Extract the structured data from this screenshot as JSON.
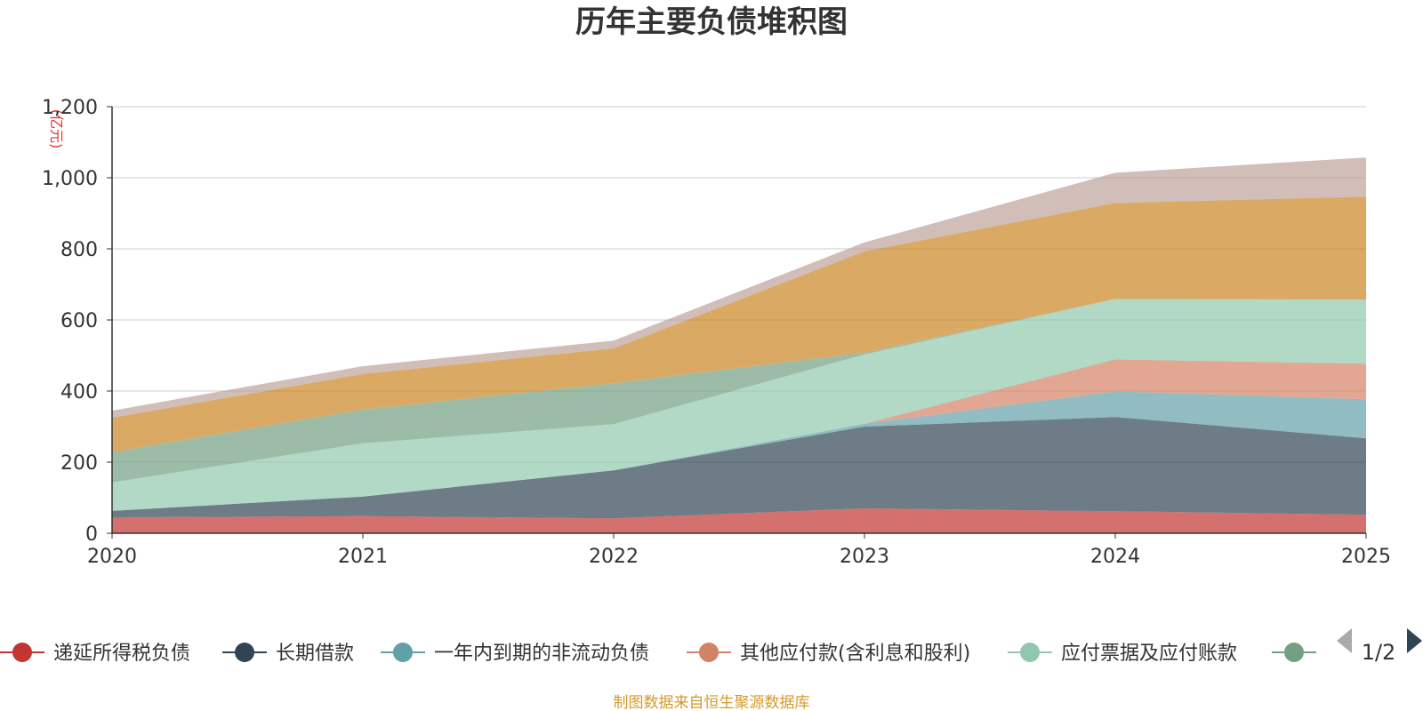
{
  "chart_data": {
    "type": "area",
    "stacked": true,
    "title": "历年主要负债堆积图",
    "ylabel": "(亿元)",
    "xlabel": "",
    "categories": [
      "2020",
      "2021",
      "2022",
      "2023",
      "2024",
      "2025"
    ],
    "ylim": [
      0,
      1200
    ],
    "yticks": [
      0,
      200,
      400,
      600,
      800,
      1000,
      1200
    ],
    "ytick_labels": [
      "0",
      "200",
      "400",
      "600",
      "800",
      "1,000",
      "1,200"
    ],
    "grid": true,
    "series": [
      {
        "name": "递延所得税负债",
        "color": "#c23531",
        "values": [
          45,
          48,
          42,
          70,
          62,
          52
        ]
      },
      {
        "name": "长期借款",
        "color": "#2f4554",
        "values": [
          18,
          55,
          135,
          230,
          265,
          215
        ]
      },
      {
        "name": "一年内到期的非流动负债",
        "color": "#61a0a8",
        "values": [
          0,
          0,
          0,
          8,
          72,
          110
        ]
      },
      {
        "name": "其他应付款(含利息和股利)",
        "color": "#d48265",
        "values": [
          0,
          0,
          0,
          0,
          90,
          100
        ]
      },
      {
        "name": "应付票据及应付账款",
        "color": "#91c7ae",
        "values": [
          80,
          150,
          130,
          195,
          170,
          180
        ]
      },
      {
        "name": "",
        "color": "#749f83",
        "values": [
          85,
          95,
          115,
          5,
          0,
          0
        ]
      },
      {
        "name": "",
        "color": "#ca8622",
        "values": [
          97,
          100,
          98,
          285,
          270,
          290
        ]
      },
      {
        "name": "",
        "color": "#bda29a",
        "values": [
          20,
          22,
          22,
          25,
          85,
          110
        ]
      }
    ],
    "legend_position": "bottom",
    "legend_visible_count": 6
  },
  "legend": {
    "page_indicator": "1/2"
  },
  "source_note": "制图数据来自恒生聚源数据库"
}
